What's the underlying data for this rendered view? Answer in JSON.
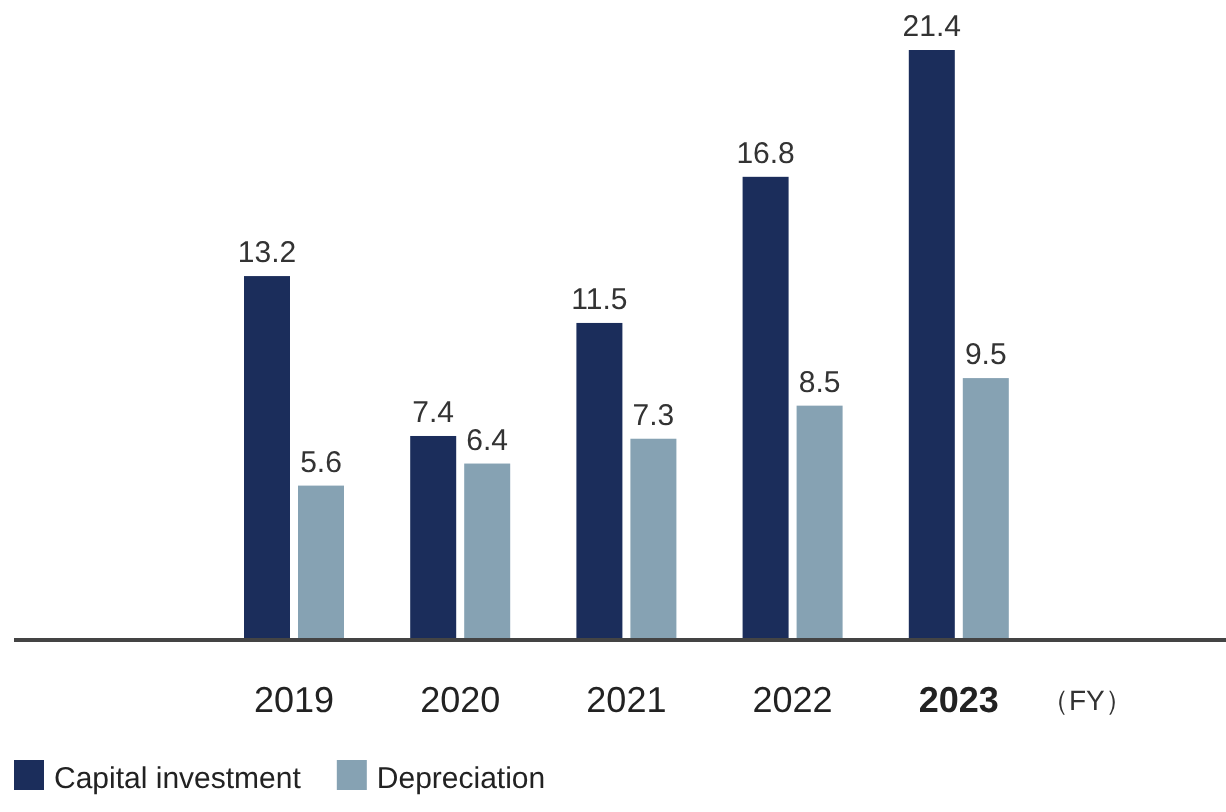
{
  "chart_data": {
    "type": "bar",
    "categories": [
      "2019",
      "2020",
      "2021",
      "2022",
      "2023"
    ],
    "xlabel": "（FY）",
    "series": [
      {
        "name": "Capital investment",
        "color": "#1b2d5b",
        "values": [
          13.2,
          7.4,
          11.5,
          16.8,
          21.4
        ]
      },
      {
        "name": "Depreciation",
        "color": "#86a2b3",
        "values": [
          5.6,
          6.4,
          7.3,
          8.5,
          9.5
        ]
      }
    ],
    "data_labels": true,
    "legend": "bottom"
  }
}
